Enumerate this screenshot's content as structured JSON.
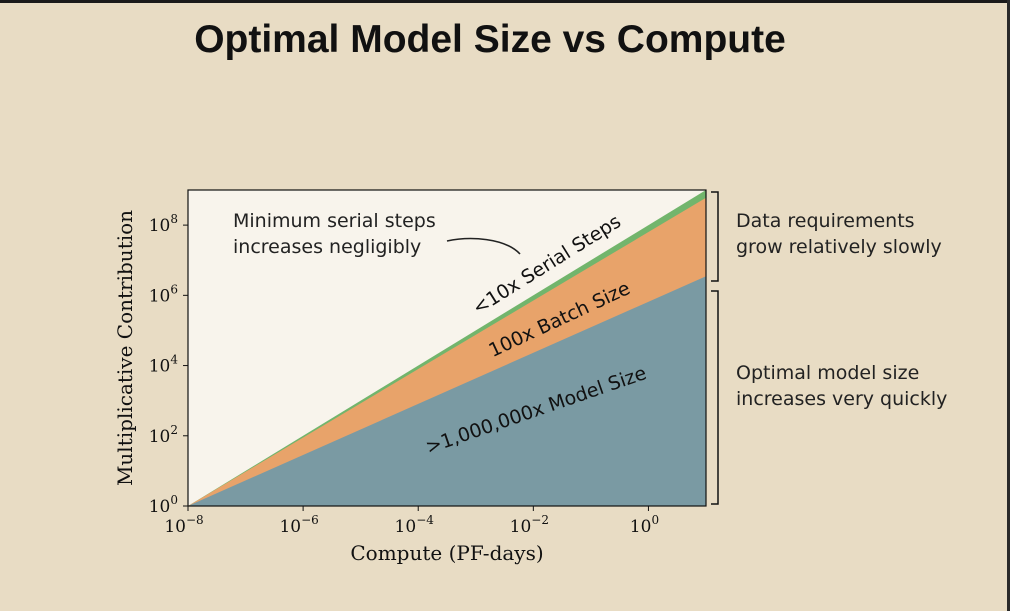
{
  "title": "Optimal Model Size vs Compute",
  "chart_data": {
    "type": "area",
    "xlabel": "Compute (PF-days)",
    "ylabel": "Multiplicative Contribution",
    "x_scale": "log",
    "y_scale": "log",
    "xlim": [
      1e-08,
      10
    ],
    "ylim": [
      1,
      1000000000.0
    ],
    "x_ticks": [
      1e-08,
      1e-06,
      0.0001,
      0.01,
      1
    ],
    "x_tick_labels": [
      {
        "base": "10",
        "exp": "−8"
      },
      {
        "base": "10",
        "exp": "−6"
      },
      {
        "base": "10",
        "exp": "−4"
      },
      {
        "base": "10",
        "exp": "−2"
      },
      {
        "base": "10",
        "exp": "0"
      }
    ],
    "y_ticks": [
      1,
      100.0,
      10000.0,
      1000000.0,
      100000000.0
    ],
    "y_tick_labels": [
      {
        "base": "10",
        "exp": "0"
      },
      {
        "base": "10",
        "exp": "2"
      },
      {
        "base": "10",
        "exp": "4"
      },
      {
        "base": "10",
        "exp": "6"
      },
      {
        "base": "10",
        "exp": "8"
      }
    ],
    "x": [
      1e-08,
      10
    ],
    "series": [
      {
        "name": ">1,000,000x Model Size",
        "y": [
          1,
          3500000.0
        ],
        "color": "#7a9aa3"
      },
      {
        "name": "100x Batch Size",
        "y": [
          1,
          600000000.0
        ],
        "color": "#e8a36a"
      },
      {
        "name": "<10x Serial Steps",
        "y": [
          1,
          1000000000.0
        ],
        "color": "#72b56c"
      }
    ],
    "grid": false
  },
  "annotations": {
    "serial_note_line1": "Minimum serial steps",
    "serial_note_line2": "increases negligibly",
    "data_note_line1": "Data requirements",
    "data_note_line2": "grow relatively slowly",
    "model_note_line1": "Optimal model size",
    "model_note_line2": "increases very quickly"
  },
  "colors": {
    "background": "#e8dcc4",
    "model": "#7a9aa3",
    "batch": "#e8a36a",
    "serial": "#72b56c",
    "plot_bg": "#f8f4ec"
  }
}
